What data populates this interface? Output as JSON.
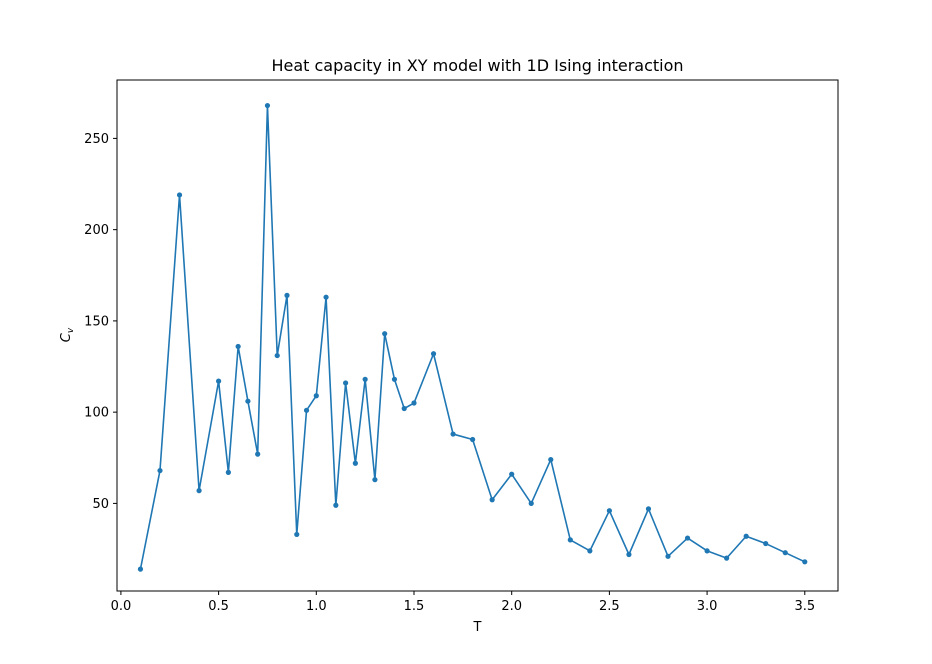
{
  "chart_data": {
    "type": "line",
    "title": "Heat capacity in XY model with 1D Ising interaction",
    "xlabel": "T",
    "ylabel_main": "C",
    "ylabel_sub": "v",
    "xlim": [
      -0.02,
      3.67
    ],
    "ylim": [
      2,
      282
    ],
    "xticks": [
      0.0,
      0.5,
      1.0,
      1.5,
      2.0,
      2.5,
      3.0,
      3.5
    ],
    "xtick_labels": [
      "0.0",
      "0.5",
      "1.0",
      "1.5",
      "2.0",
      "2.5",
      "3.0",
      "3.5"
    ],
    "yticks": [
      50,
      100,
      150,
      200,
      250
    ],
    "ytick_labels": [
      "50",
      "100",
      "150",
      "200",
      "250"
    ],
    "grid": false,
    "series": [
      {
        "color": "#1f77b4",
        "marker": "circle",
        "x": [
          0.1,
          0.2,
          0.3,
          0.4,
          0.5,
          0.55,
          0.6,
          0.65,
          0.7,
          0.75,
          0.8,
          0.85,
          0.9,
          0.95,
          1.0,
          1.05,
          1.1,
          1.15,
          1.2,
          1.25,
          1.3,
          1.35,
          1.4,
          1.45,
          1.5,
          1.6,
          1.7,
          1.8,
          1.9,
          2.0,
          2.1,
          2.2,
          2.3,
          2.4,
          2.5,
          2.6,
          2.7,
          2.8,
          2.9,
          3.0,
          3.1,
          3.2,
          3.3,
          3.4,
          3.5
        ],
        "y": [
          14,
          68,
          219,
          57,
          117,
          67,
          136,
          106,
          77,
          268,
          131,
          164,
          33,
          101,
          109,
          163,
          49,
          116,
          72,
          118,
          63,
          143,
          118,
          102,
          105,
          132,
          88,
          85,
          52,
          66,
          50,
          74,
          30,
          24,
          46,
          22,
          47,
          21,
          31,
          24,
          20,
          32,
          28,
          23,
          18
        ]
      }
    ]
  }
}
